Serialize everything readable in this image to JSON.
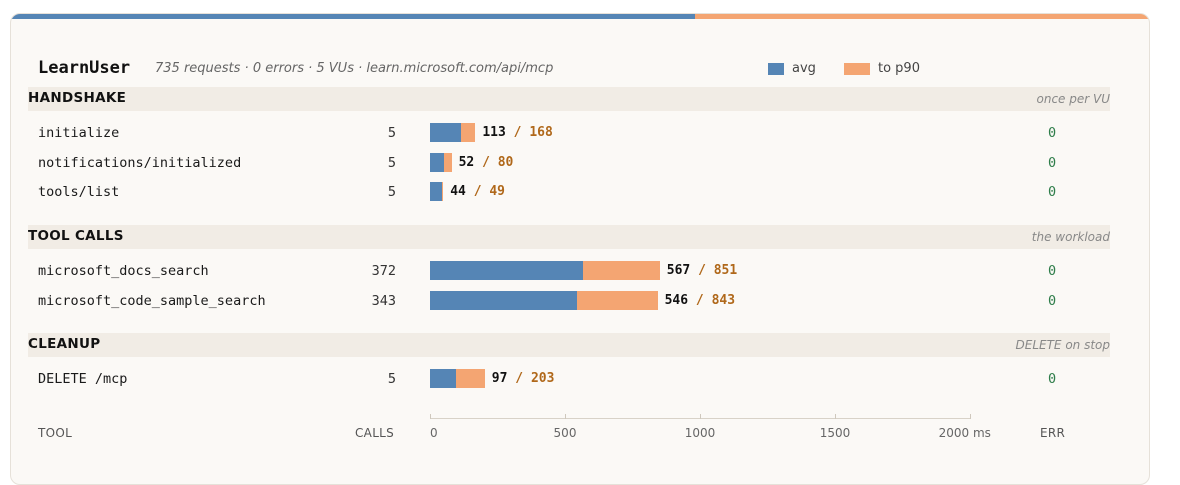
{
  "header": {
    "title": "LearnUser",
    "subtitle": "735 requests · 0 errors · 5 VUs · learn.microsoft.com/api/mcp"
  },
  "legend": [
    {
      "label": "avg",
      "color": "#5585b5"
    },
    {
      "label": "to p90",
      "color": "#f4a572"
    }
  ],
  "colors": {
    "avg": "#5585b5",
    "p90": "#f4a572",
    "err_ok": "#2e7d4a"
  },
  "sections": [
    {
      "name": "HANDSHAKE",
      "note": "once per VU",
      "rows": [
        {
          "tool": "initialize",
          "calls": "5",
          "avg": 113,
          "p90": 168,
          "err": "0"
        },
        {
          "tool": "notifications/initialized",
          "calls": "5",
          "avg": 52,
          "p90": 80,
          "err": "0"
        },
        {
          "tool": "tools/list",
          "calls": "5",
          "avg": 44,
          "p90": 49,
          "err": "0"
        }
      ]
    },
    {
      "name": "TOOL CALLS",
      "note": "the workload",
      "rows": [
        {
          "tool": "microsoft_docs_search",
          "calls": "372",
          "avg": 567,
          "p90": 851,
          "err": "0"
        },
        {
          "tool": "microsoft_code_sample_search",
          "calls": "343",
          "avg": 546,
          "p90": 843,
          "err": "0"
        }
      ]
    },
    {
      "name": "CLEANUP",
      "note": "DELETE on stop",
      "rows": [
        {
          "tool": "DELETE /mcp",
          "calls": "5",
          "avg": 97,
          "p90": 203,
          "err": "0"
        }
      ]
    }
  ],
  "footer": {
    "tool_label": "TOOL",
    "calls_label": "CALLS",
    "err_label": "ERR"
  },
  "chart_data": {
    "type": "bar",
    "orientation": "horizontal",
    "stacked": true,
    "categories": [
      "initialize",
      "notifications/initialized",
      "tools/list",
      "microsoft_docs_search",
      "microsoft_code_sample_search",
      "DELETE /mcp"
    ],
    "series": [
      {
        "name": "avg",
        "values": [
          113,
          52,
          44,
          567,
          546,
          97
        ]
      },
      {
        "name": "to p90",
        "values": [
          168,
          80,
          49,
          851,
          843,
          203
        ]
      }
    ],
    "xlim": [
      0,
      2000
    ],
    "xticks": [
      {
        "value": 0,
        "label": "0"
      },
      {
        "value": 500,
        "label": "500"
      },
      {
        "value": 1000,
        "label": "1000"
      },
      {
        "value": 1500,
        "label": "1500"
      },
      {
        "value": 2000,
        "label": "2000 ms"
      }
    ],
    "grid": false,
    "legend_position": "top-right"
  }
}
